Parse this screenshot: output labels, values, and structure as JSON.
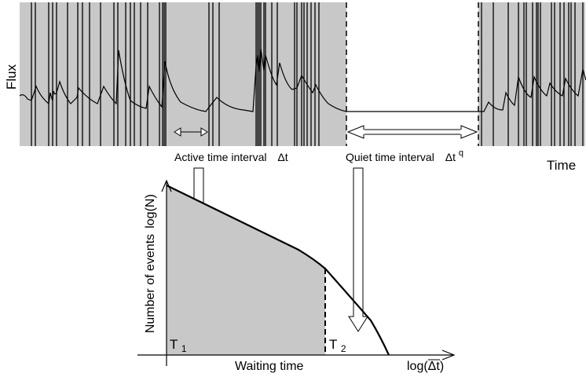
{
  "top_panel": {
    "ylabel": "Flux",
    "xlabel": "Time",
    "active_label": "Active time interval",
    "active_symbol": "Δt",
    "quiet_label": "Quiet time interval",
    "quiet_symbol": "Δt",
    "quiet_superscript": "q",
    "colors": {
      "active_fill": "#c8c8c8",
      "quiet_fill": "#ffffff",
      "line": "#000000"
    }
  },
  "bottom_panel": {
    "ylabel": "Number of events",
    "ylabel_log": "log(N)",
    "xlabel": "Waiting time",
    "xlabel_log": "log(Δt)",
    "t1": "T",
    "t1_sub": "1",
    "t2": "T",
    "t2_sub": "2",
    "colors": {
      "area_fill": "#c8c8c8",
      "curve": "#000000"
    }
  }
}
